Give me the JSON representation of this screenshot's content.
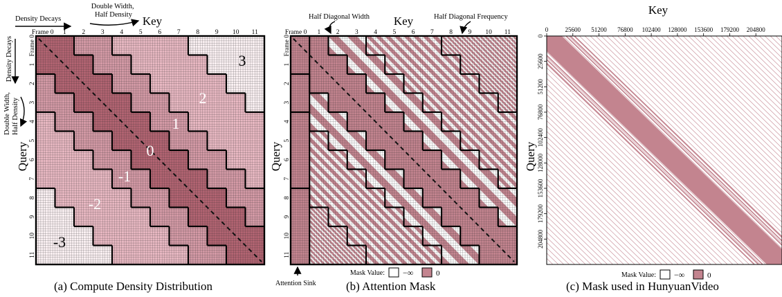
{
  "colors": {
    "density_level_3": "#fbf1f3",
    "density_level_2": "#e8b8c2",
    "density_level_1": "#d49aa6",
    "density_level_0": "#b26472",
    "grid_line": "#2a2a2a",
    "mask_fill": "#c3848f",
    "mask_empty": "#ffffff"
  },
  "panel_a": {
    "caption": "(a) Compute Density Distribution",
    "key_label": "Key",
    "query_label": "Query",
    "annotations": {
      "density_decays_top": "Density Decays",
      "double_width_top_line1": "Double Width,",
      "double_width_top_line2": "Half Density",
      "density_decays_left": "Density Decays",
      "double_width_left_line1": "Double Width,",
      "double_width_left_line2": "Half Density"
    },
    "frame_labels": [
      "Frame 0",
      "1",
      "2",
      "3",
      "4",
      "5",
      "6",
      "7",
      "8",
      "9",
      "10",
      "11"
    ],
    "row_labels": [
      "Frame 0",
      "1",
      "2",
      "3",
      "4",
      "5",
      "6",
      "7",
      "8",
      "9",
      "10",
      "11"
    ],
    "band_labels": [
      "3",
      "2",
      "1",
      "0",
      "-1",
      "-2",
      "-3"
    ]
  },
  "panel_b": {
    "caption": "(b) Attention Mask",
    "key_label": "Key",
    "query_label": "Query",
    "annotations": {
      "half_diagonal_width": "Half Diagonal Width",
      "half_diagonal_frequency": "Half Diagonal Frequency",
      "attention_sink": "Attention Sink"
    },
    "frame_labels": [
      "Frame 0",
      "1",
      "2",
      "3",
      "4",
      "5",
      "6",
      "7",
      "8",
      "9",
      "10",
      "11"
    ],
    "row_labels": [
      "Frame 0",
      "1",
      "2",
      "3",
      "4",
      "5",
      "6",
      "7",
      "8",
      "9",
      "10",
      "11"
    ],
    "legend": {
      "title": "Mask Value:",
      "empty_label": "−∞",
      "filled_label": "0"
    }
  },
  "panel_c": {
    "caption": "(c) Mask used in HunyuanVideo",
    "key_label": "Key",
    "query_label": "Query",
    "ticks": [
      "0",
      "25600",
      "51200",
      "76800",
      "102400",
      "128000",
      "153600",
      "179200",
      "204800"
    ],
    "legend": {
      "title": "Mask Value:",
      "empty_label": "−∞",
      "filled_label": "0"
    }
  }
}
